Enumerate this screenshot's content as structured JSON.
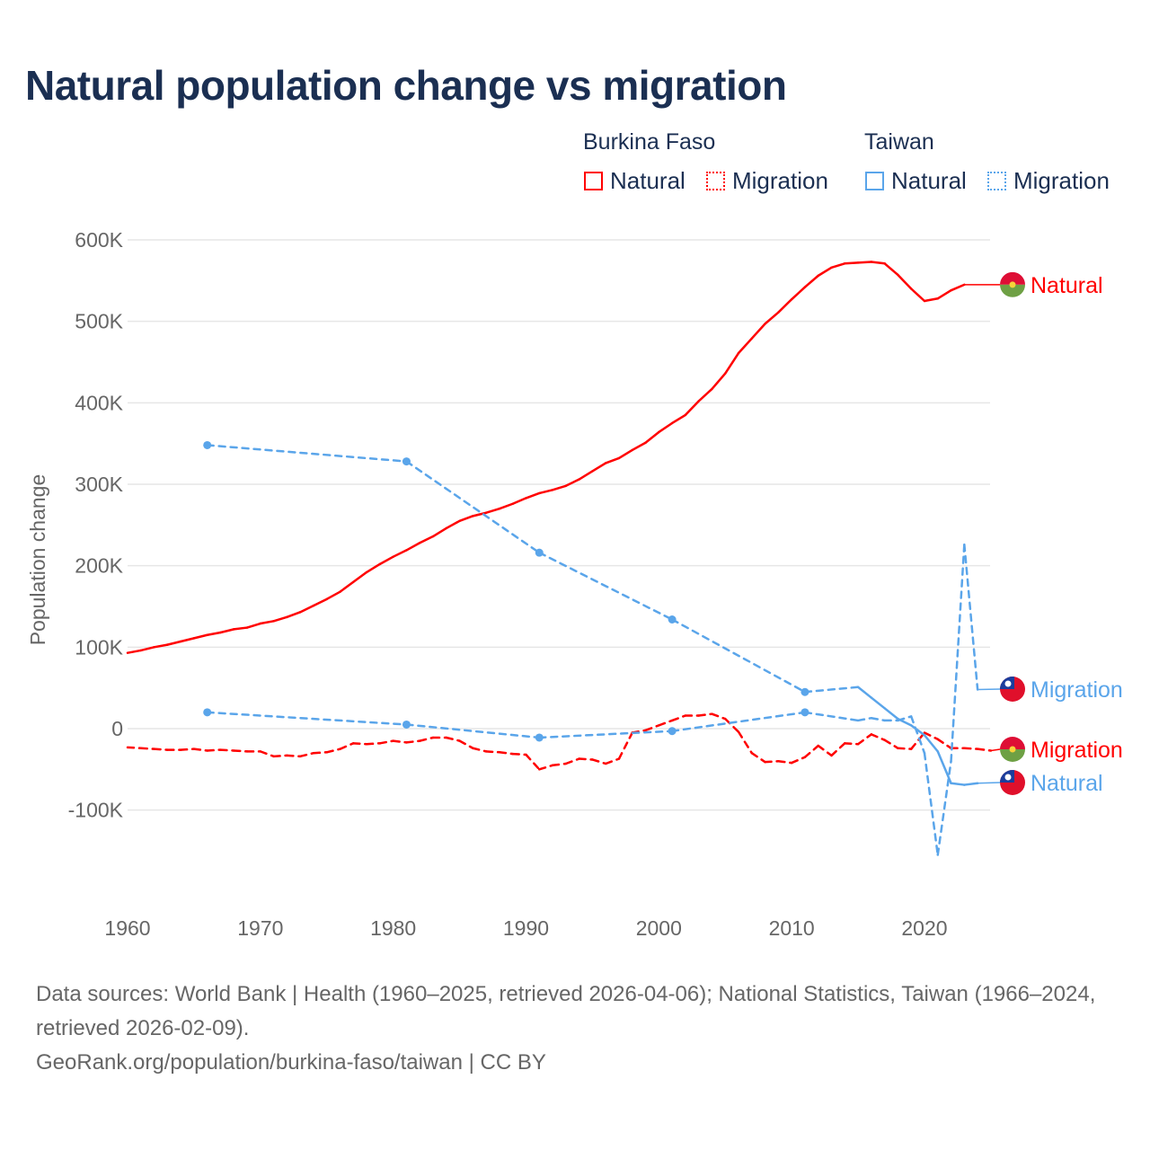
{
  "title": "Natural population change vs migration",
  "legend": {
    "groups": [
      {
        "name": "Burkina Faso",
        "items": [
          "Natural",
          "Migration"
        ],
        "color": "#ff0000"
      },
      {
        "name": "Taiwan",
        "items": [
          "Natural",
          "Migration"
        ],
        "color": "#5aa5ea"
      }
    ]
  },
  "footer": {
    "sources": "Data sources: World Bank | Health (1960–2025, retrieved 2026-04-06); National Statistics, Taiwan (1966–2024, retrieved 2026-02-09).",
    "credit": "GeoRank.org/population/burkina-faso/taiwan | CC BY"
  },
  "chart_data": {
    "type": "line",
    "title": "Natural population change vs migration",
    "xlabel": "",
    "ylabel": "Population change",
    "xlim": [
      1960,
      2026
    ],
    "ylim": [
      -100,
      600
    ],
    "y_unit": "thousands",
    "x_ticks": [
      "1960",
      "1970",
      "1980",
      "1990",
      "2000",
      "2010",
      "2020"
    ],
    "y_ticks": [
      {
        "v": 600,
        "label": "600K"
      },
      {
        "v": 500,
        "label": "500K"
      },
      {
        "v": 400,
        "label": "400K"
      },
      {
        "v": 300,
        "label": "300K"
      },
      {
        "v": 200,
        "label": "200K"
      },
      {
        "v": 100,
        "label": "100K"
      },
      {
        "v": 0,
        "label": "0"
      },
      {
        "v": -100,
        "label": "-100K"
      }
    ],
    "grid": true,
    "series": [
      {
        "name": "Burkina Faso Natural",
        "label": "Natural",
        "country": "burkina",
        "color": "#ff0000",
        "style": "solid",
        "x": [
          1960,
          1961,
          1962,
          1963,
          1964,
          1965,
          1966,
          1967,
          1968,
          1969,
          1970,
          1971,
          1972,
          1973,
          1974,
          1975,
          1976,
          1977,
          1978,
          1979,
          1980,
          1981,
          1982,
          1983,
          1984,
          1985,
          1986,
          1987,
          1988,
          1989,
          1990,
          1991,
          1992,
          1993,
          1994,
          1995,
          1996,
          1997,
          1998,
          1999,
          2000,
          2001,
          2002,
          2003,
          2004,
          2005,
          2006,
          2007,
          2008,
          2009,
          2010,
          2011,
          2012,
          2013,
          2014,
          2015,
          2016,
          2017,
          2018,
          2019,
          2020,
          2021,
          2022,
          2023
        ],
        "y": [
          93,
          96,
          100,
          103,
          107,
          111,
          115,
          118,
          122,
          124,
          129,
          132,
          137,
          143,
          151,
          159,
          168,
          180,
          192,
          202,
          211,
          219,
          228,
          236,
          246,
          255,
          261,
          265,
          270,
          276,
          283,
          289,
          293,
          298,
          306,
          316,
          326,
          332,
          342,
          351,
          364,
          375,
          385,
          402,
          417,
          436,
          461,
          479,
          497,
          511,
          527,
          542,
          556,
          566,
          571,
          572,
          573,
          571,
          557,
          540,
          525,
          528,
          538,
          545
        ]
      },
      {
        "name": "Burkina Faso Migration",
        "label": "Migration",
        "country": "burkina",
        "color": "#ff0000",
        "style": "dashed",
        "x": [
          1960,
          1961,
          1962,
          1963,
          1964,
          1965,
          1966,
          1967,
          1968,
          1969,
          1970,
          1971,
          1972,
          1973,
          1974,
          1975,
          1976,
          1977,
          1978,
          1979,
          1980,
          1981,
          1982,
          1983,
          1984,
          1985,
          1986,
          1987,
          1988,
          1989,
          1990,
          1991,
          1992,
          1993,
          1994,
          1995,
          1996,
          1997,
          1998,
          1999,
          2000,
          2001,
          2002,
          2003,
          2004,
          2005,
          2006,
          2007,
          2008,
          2009,
          2010,
          2011,
          2012,
          2013,
          2014,
          2015,
          2016,
          2017,
          2018,
          2019,
          2020,
          2021,
          2022,
          2023,
          2024,
          2025
        ],
        "y": [
          -23,
          -24,
          -25,
          -26,
          -26,
          -25,
          -27,
          -26,
          -27,
          -28,
          -28,
          -34,
          -33,
          -34,
          -30,
          -29,
          -25,
          -18,
          -19,
          -18,
          -15,
          -17,
          -15,
          -11,
          -11,
          -15,
          -24,
          -28,
          -29,
          -31,
          -32,
          -50,
          -45,
          -43,
          -37,
          -38,
          -43,
          -37,
          -5,
          -2,
          4,
          10,
          16,
          16,
          18,
          12,
          -4,
          -30,
          -41,
          -40,
          -42,
          -35,
          -21,
          -33,
          -18,
          -19,
          -7,
          -14,
          -24,
          -25,
          -5,
          -13,
          -24,
          -24,
          -25,
          -27
        ]
      },
      {
        "name": "Taiwan Natural",
        "label": "Natural",
        "country": "taiwan",
        "color": "#5aa5ea",
        "style": "solid",
        "x": [
          1966,
          1981,
          1991,
          2001,
          2011,
          2015,
          2016,
          2017,
          2018,
          2019,
          2020,
          2021,
          2022,
          2023,
          2024
        ],
        "y": [
          348,
          328,
          216,
          134,
          45,
          51,
          38,
          25,
          12,
          4,
          -8,
          -28,
          -67,
          -69,
          -67
        ]
      },
      {
        "name": "Taiwan Migration",
        "label": "Migration",
        "country": "taiwan",
        "color": "#5aa5ea",
        "style": "dashed",
        "x": [
          1966,
          1981,
          1991,
          2001,
          2011,
          2015,
          2016,
          2017,
          2018,
          2019,
          2020,
          2021,
          2022,
          2023,
          2024
        ],
        "y": [
          20,
          5,
          -11,
          -3,
          20,
          10,
          13,
          10,
          10,
          15,
          -30,
          -155,
          -40,
          226,
          48
        ]
      }
    ]
  }
}
